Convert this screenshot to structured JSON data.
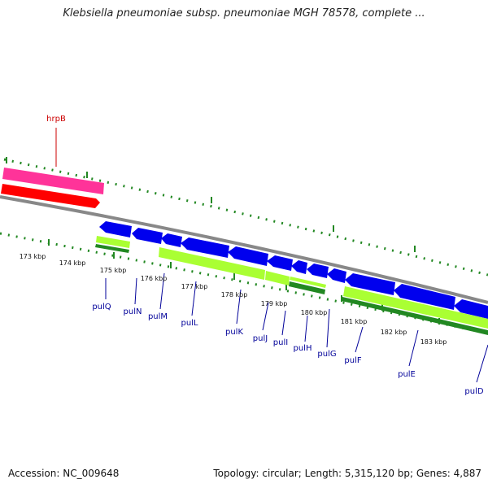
{
  "title": "Klebsiella pneumoniae subsp. pneumoniae MGH 78578, complete ...",
  "footer": {
    "accession": "Accession: NC_009648",
    "summary": "Topology: circular; Length: 5,315,120 bp; Genes: 4,887"
  },
  "colors": {
    "outer_gene": "#ff3399",
    "outer_cds": "#ff0000",
    "inner_gene": "#0000ee",
    "inner_cds_light": "#aaff33",
    "inner_cds_dark": "#228822",
    "backbone": "#888888",
    "ticks": "#228822",
    "label_outer": "#cc0000",
    "label_inner": "#000099"
  },
  "axis": {
    "unit": "kbp",
    "ticks": [
      "173 kbp",
      "174 kbp",
      "175 kbp",
      "176 kbp",
      "177 kbp",
      "178 kbp",
      "179 kbp",
      "180 kbp",
      "181 kbp",
      "182 kbp",
      "183 kbp"
    ]
  },
  "genes": [
    {
      "name": "hrpB",
      "strand": "+"
    },
    {
      "name": "pulQ",
      "strand": "-"
    },
    {
      "name": "pulN",
      "strand": "-"
    },
    {
      "name": "pulM",
      "strand": "-"
    },
    {
      "name": "pulL",
      "strand": "-"
    },
    {
      "name": "pulK",
      "strand": "-"
    },
    {
      "name": "pulJ",
      "strand": "-"
    },
    {
      "name": "pulI",
      "strand": "-"
    },
    {
      "name": "pulH",
      "strand": "-"
    },
    {
      "name": "pulG",
      "strand": "-"
    },
    {
      "name": "pulF",
      "strand": "-"
    },
    {
      "name": "pulE",
      "strand": "-"
    },
    {
      "name": "pulD",
      "strand": "-"
    }
  ]
}
